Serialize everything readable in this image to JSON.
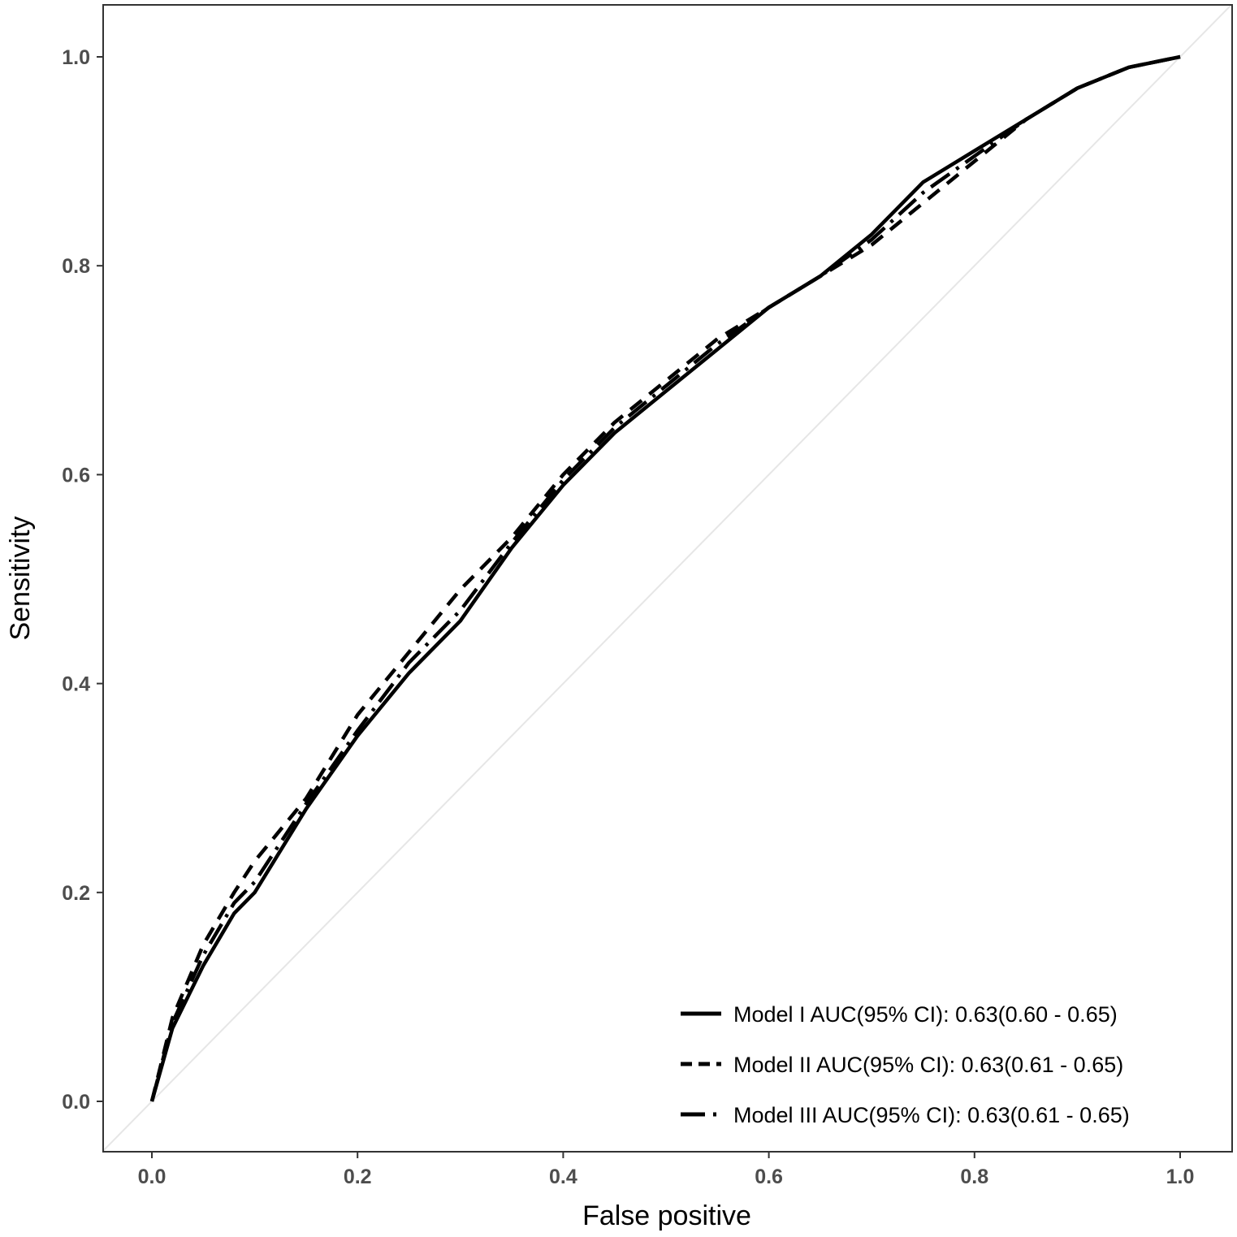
{
  "chart_data": {
    "type": "line",
    "title": "",
    "xlabel": "False positive",
    "ylabel": "Sensitivity",
    "xlim": [
      0,
      1
    ],
    "ylim": [
      0,
      1
    ],
    "xticks": [
      "0.0",
      "0.2",
      "0.4",
      "0.6",
      "0.8",
      "1.0"
    ],
    "yticks": [
      "0.0",
      "0.2",
      "0.4",
      "0.6",
      "0.8",
      "1.0"
    ],
    "grid": false,
    "legend_position": "bottom-right",
    "reference_line": {
      "x": [
        0,
        1
      ],
      "y": [
        0,
        1
      ],
      "color": "#e6e6e6"
    },
    "series": [
      {
        "name": "Model I AUC(95% CI): 0.63(0.60 - 0.65)",
        "line_style": "solid",
        "color": "#000000",
        "x": [
          0.0,
          0.02,
          0.05,
          0.08,
          0.1,
          0.15,
          0.2,
          0.25,
          0.3,
          0.35,
          0.4,
          0.45,
          0.5,
          0.55,
          0.6,
          0.65,
          0.7,
          0.75,
          0.8,
          0.85,
          0.9,
          0.95,
          1.0
        ],
        "y": [
          0.0,
          0.07,
          0.13,
          0.18,
          0.2,
          0.28,
          0.35,
          0.41,
          0.46,
          0.53,
          0.59,
          0.64,
          0.68,
          0.72,
          0.76,
          0.79,
          0.83,
          0.88,
          0.91,
          0.94,
          0.97,
          0.99,
          1.0
        ]
      },
      {
        "name": "Model II AUC(95% CI): 0.63(0.61 - 0.65)",
        "line_style": "dashed",
        "color": "#000000",
        "x": [
          0.0,
          0.02,
          0.05,
          0.08,
          0.1,
          0.15,
          0.2,
          0.25,
          0.3,
          0.35,
          0.4,
          0.45,
          0.5,
          0.55,
          0.6,
          0.65,
          0.7,
          0.75,
          0.8,
          0.85,
          0.9,
          0.95,
          1.0
        ],
        "y": [
          0.0,
          0.08,
          0.15,
          0.2,
          0.23,
          0.29,
          0.37,
          0.43,
          0.49,
          0.54,
          0.6,
          0.65,
          0.69,
          0.73,
          0.76,
          0.79,
          0.82,
          0.86,
          0.9,
          0.94,
          0.97,
          0.99,
          1.0
        ]
      },
      {
        "name": "Model III AUC(95% CI): 0.63(0.61 - 0.65)",
        "line_style": "dashdot",
        "color": "#000000",
        "x": [
          0.0,
          0.02,
          0.05,
          0.08,
          0.1,
          0.15,
          0.2,
          0.25,
          0.3,
          0.35,
          0.4,
          0.45,
          0.5,
          0.55,
          0.6,
          0.65,
          0.7,
          0.75,
          0.8,
          0.85,
          0.9,
          0.95,
          1.0
        ],
        "y": [
          0.0,
          0.075,
          0.14,
          0.19,
          0.21,
          0.285,
          0.355,
          0.42,
          0.47,
          0.535,
          0.595,
          0.645,
          0.685,
          0.725,
          0.76,
          0.79,
          0.825,
          0.87,
          0.905,
          0.94,
          0.97,
          0.99,
          1.0
        ]
      }
    ]
  }
}
